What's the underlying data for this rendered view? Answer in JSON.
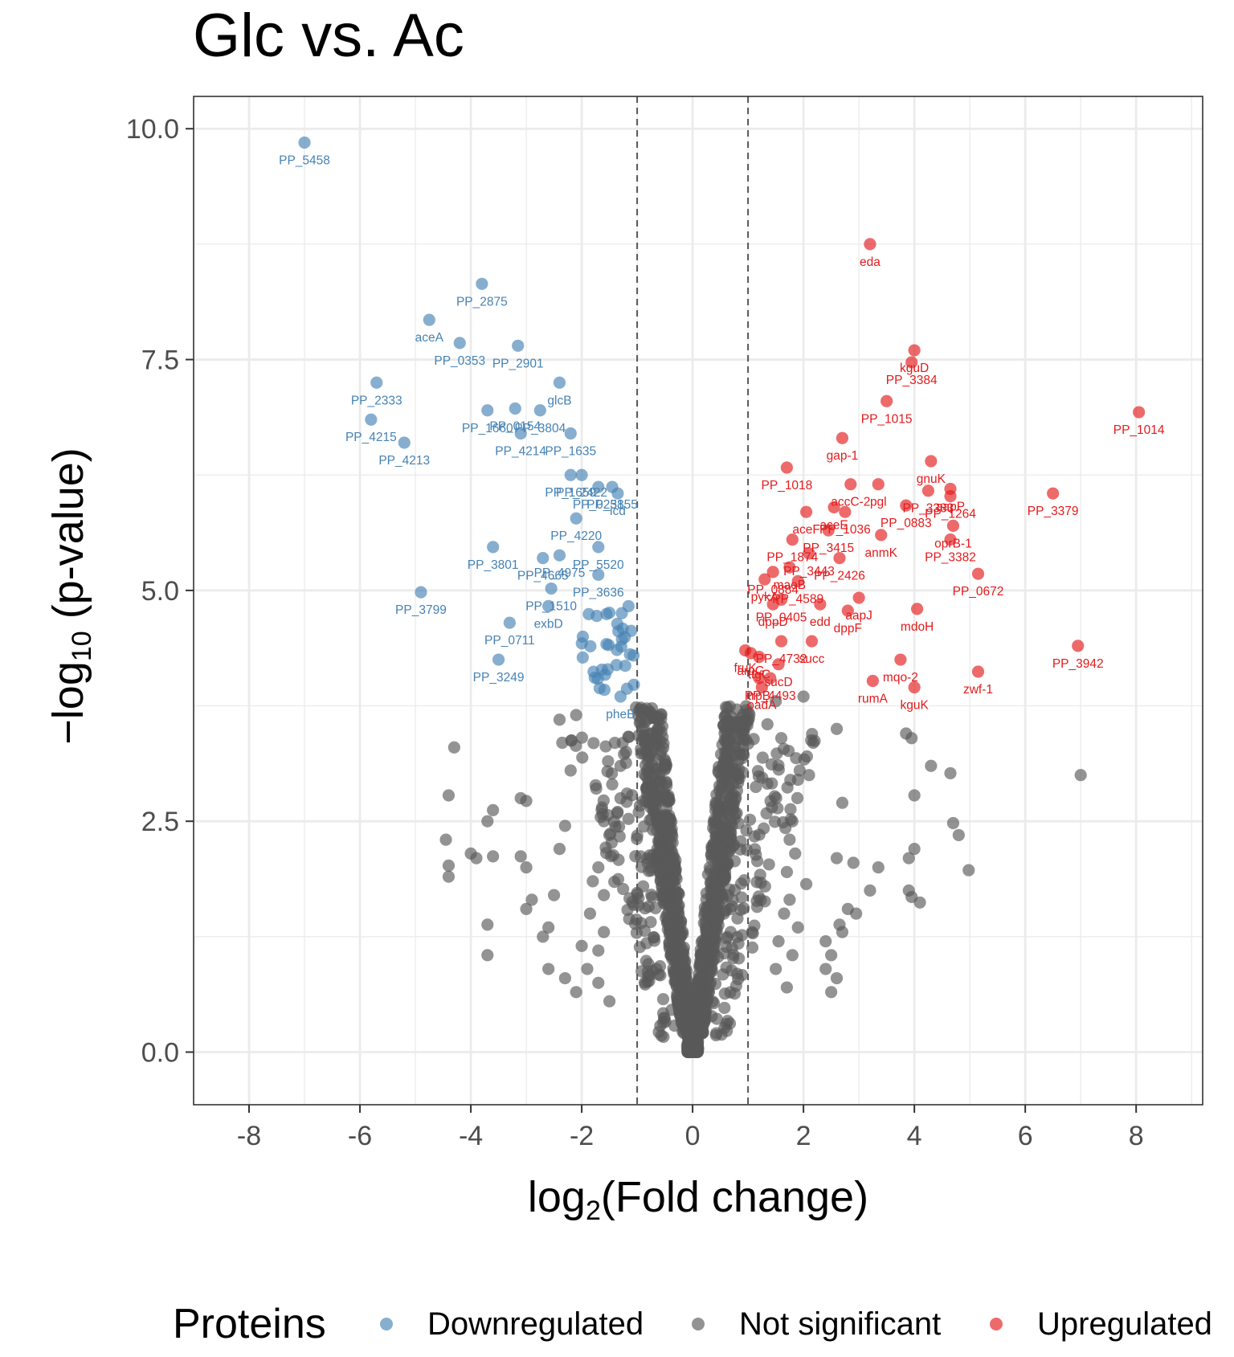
{
  "chart_data": {
    "type": "scatter",
    "title": "Glc vs. Ac",
    "xlabel": "log2(Fold change)",
    "ylabel": "−log10 (p-value)",
    "xlim": [
      -9,
      9.2
    ],
    "ylim": [
      -0.57,
      10.35
    ],
    "x_ticks": [
      -8,
      -6,
      -4,
      -2,
      0,
      2,
      4,
      6,
      8
    ],
    "x_tick_labels": [
      "-8",
      "-6",
      "-4",
      "-2",
      "0",
      "2",
      "4",
      "6",
      "8"
    ],
    "y_ticks": [
      0,
      2.5,
      5,
      7.5,
      10
    ],
    "y_tick_labels": [
      "0.0",
      "2.5",
      "5.0",
      "7.5",
      "10.0"
    ],
    "fc_thresholds": [
      -1,
      1
    ],
    "grid": true,
    "legend": {
      "title": "Proteins",
      "position": "bottom",
      "entries": [
        {
          "name": "Downregulated",
          "color": "#4682B4"
        },
        {
          "name": "Not significant",
          "color": "#595959"
        },
        {
          "name": "Upregulated",
          "color": "#E31A1C"
        }
      ]
    },
    "colors": {
      "down": "#4682B4",
      "ns": "#595959",
      "up": "#E31A1C"
    },
    "down": [
      {
        "label": "PP_5458",
        "x": -7.0,
        "y": 9.85
      },
      {
        "label": "PP_2875",
        "x": -3.8,
        "y": 8.32
      },
      {
        "label": "aceA",
        "x": -4.75,
        "y": 7.93
      },
      {
        "label": "PP_2901",
        "x": -3.15,
        "y": 7.65
      },
      {
        "label": "PP_0353",
        "x": -4.2,
        "y": 7.68
      },
      {
        "label": "PP_2333",
        "x": -5.7,
        "y": 7.25
      },
      {
        "label": "glcB",
        "x": -2.4,
        "y": 7.25
      },
      {
        "label": "PP_0154",
        "x": -3.2,
        "y": 6.97
      },
      {
        "label": "PP_4215",
        "x": -5.8,
        "y": 6.85
      },
      {
        "label": "PP_3804",
        "x": -2.75,
        "y": 6.95
      },
      {
        "label": "PP_1660",
        "x": -3.7,
        "y": 6.95
      },
      {
        "label": "PP_1635",
        "x": -2.2,
        "y": 6.7
      },
      {
        "label": "PP_4214",
        "x": -3.1,
        "y": 6.7
      },
      {
        "label": "PP_4213",
        "x": -5.2,
        "y": 6.6
      },
      {
        "label": "PP_2422",
        "x": -2.0,
        "y": 6.25
      },
      {
        "label": "PP_1659",
        "x": -2.2,
        "y": 6.25
      },
      {
        "label": "PP_3155",
        "x": -1.45,
        "y": 6.12
      },
      {
        "label": "PP_0258",
        "x": -1.7,
        "y": 6.12
      },
      {
        "label": "icd",
        "x": -1.35,
        "y": 6.05
      },
      {
        "label": "PP_4220",
        "x": -2.1,
        "y": 5.78
      },
      {
        "label": "PP_5520",
        "x": -1.7,
        "y": 5.47
      },
      {
        "label": "PP_3801",
        "x": -3.6,
        "y": 5.47
      },
      {
        "label": "PP_4975",
        "x": -2.4,
        "y": 5.38
      },
      {
        "label": "PP_4665",
        "x": -2.7,
        "y": 5.35
      },
      {
        "label": "PP_3636",
        "x": -1.7,
        "y": 5.17
      },
      {
        "label": "PP_1510",
        "x": -2.55,
        "y": 5.02
      },
      {
        "label": "PP_3799",
        "x": -4.9,
        "y": 4.98
      },
      {
        "label": "exbD",
        "x": -2.6,
        "y": 4.83
      },
      {
        "label": "PP_0711",
        "x": -3.3,
        "y": 4.65
      },
      {
        "label": "PP_3249",
        "x": -3.5,
        "y": 4.25
      },
      {
        "label": "pheB",
        "x": -1.3,
        "y": 3.85
      }
    ],
    "up": [
      {
        "label": "eda",
        "x": 3.2,
        "y": 8.75
      },
      {
        "label": "kguD",
        "x": 4.0,
        "y": 7.6
      },
      {
        "label": "PP_3384",
        "x": 3.95,
        "y": 7.47
      },
      {
        "label": "PP_1015",
        "x": 3.5,
        "y": 7.05
      },
      {
        "label": "PP_1014",
        "x": 8.05,
        "y": 6.93
      },
      {
        "label": "gnuK",
        "x": 4.3,
        "y": 6.4
      },
      {
        "label": "gap-1",
        "x": 2.7,
        "y": 6.65
      },
      {
        "label": "PP_1018",
        "x": 1.7,
        "y": 6.33
      },
      {
        "label": "accC-2",
        "x": 2.85,
        "y": 6.15
      },
      {
        "label": "pgl",
        "x": 3.35,
        "y": 6.15
      },
      {
        "label": "PP_3383",
        "x": 4.25,
        "y": 6.08
      },
      {
        "label": "aapP",
        "x": 4.65,
        "y": 6.1
      },
      {
        "label": "PP_3379",
        "x": 6.5,
        "y": 6.05
      },
      {
        "label": "aceF",
        "x": 2.05,
        "y": 5.85
      },
      {
        "label": "aceE",
        "x": 2.55,
        "y": 5.9
      },
      {
        "label": "PP_1036",
        "x": 2.75,
        "y": 5.85
      },
      {
        "label": "PP_0883",
        "x": 3.85,
        "y": 5.92
      },
      {
        "label": "PP_1264",
        "x": 4.65,
        "y": 6.02
      },
      {
        "label": "PP_1874",
        "x": 1.8,
        "y": 5.55
      },
      {
        "label": "PP_3415",
        "x": 2.45,
        "y": 5.65
      },
      {
        "label": "PP_2426",
        "x": 2.65,
        "y": 5.35
      },
      {
        "label": "anmK",
        "x": 3.4,
        "y": 5.6
      },
      {
        "label": "oprB-1",
        "x": 4.7,
        "y": 5.7
      },
      {
        "label": "PP_0884",
        "x": 1.45,
        "y": 5.2
      },
      {
        "label": "PP_3443",
        "x": 2.1,
        "y": 5.4
      },
      {
        "label": "PP_3382",
        "x": 4.65,
        "y": 5.55
      },
      {
        "label": "maeB",
        "x": 1.75,
        "y": 5.25
      },
      {
        "label": "pykA",
        "x": 1.3,
        "y": 5.12
      },
      {
        "label": "PP_4589",
        "x": 1.9,
        "y": 5.1
      },
      {
        "label": "PP_0672",
        "x": 5.15,
        "y": 5.18
      },
      {
        "label": "edd",
        "x": 2.3,
        "y": 4.85
      },
      {
        "label": "aapJ",
        "x": 3.0,
        "y": 4.92
      },
      {
        "label": "dppD",
        "x": 1.45,
        "y": 4.85
      },
      {
        "label": "dppF",
        "x": 2.8,
        "y": 4.78
      },
      {
        "label": "mdoH",
        "x": 4.05,
        "y": 4.8
      },
      {
        "label": "PP_0405",
        "x": 1.6,
        "y": 4.9
      },
      {
        "label": "fruK",
        "x": 0.95,
        "y": 4.35
      },
      {
        "label": "PP_3942",
        "x": 6.95,
        "y": 4.4
      },
      {
        "label": "succ",
        "x": 2.15,
        "y": 4.45
      },
      {
        "label": "mqo-2",
        "x": 3.75,
        "y": 4.25
      },
      {
        "label": "aruG",
        "x": 1.05,
        "y": 4.32
      },
      {
        "label": "ttgC",
        "x": 1.2,
        "y": 4.28
      },
      {
        "label": "PP_4732",
        "x": 1.6,
        "y": 4.45
      },
      {
        "label": "zwf-1",
        "x": 5.15,
        "y": 4.12
      },
      {
        "label": "sucD",
        "x": 1.55,
        "y": 4.2
      },
      {
        "label": "PP_4493",
        "x": 1.4,
        "y": 4.05
      },
      {
        "label": "rumA",
        "x": 3.25,
        "y": 4.02
      },
      {
        "label": "trpB",
        "x": 1.2,
        "y": 4.05
      },
      {
        "label": "kguK",
        "x": 4.0,
        "y": 3.95
      },
      {
        "label": "oadA",
        "x": 1.25,
        "y": 3.95
      }
    ],
    "ns_outliers": [
      {
        "x": -4.3,
        "y": 3.3
      },
      {
        "x": -4.4,
        "y": 2.78
      },
      {
        "x": -3.7,
        "y": 2.5
      },
      {
        "x": -3.6,
        "y": 2.62
      },
      {
        "x": -4.45,
        "y": 2.3
      },
      {
        "x": -4.0,
        "y": 2.15
      },
      {
        "x": -3.9,
        "y": 2.1
      },
      {
        "x": -4.4,
        "y": 2.02
      },
      {
        "x": -4.4,
        "y": 1.9
      },
      {
        "x": -3.6,
        "y": 2.12
      },
      {
        "x": -3.1,
        "y": 2.75
      },
      {
        "x": -3.0,
        "y": 2.72
      },
      {
        "x": -3.1,
        "y": 2.12
      },
      {
        "x": -3.0,
        "y": 2.0
      },
      {
        "x": -2.9,
        "y": 1.65
      },
      {
        "x": -3.0,
        "y": 1.55
      },
      {
        "x": -3.7,
        "y": 1.38
      },
      {
        "x": -3.7,
        "y": 1.05
      },
      {
        "x": -2.7,
        "y": 1.25
      },
      {
        "x": -2.6,
        "y": 1.35
      },
      {
        "x": -2.6,
        "y": 0.9
      },
      {
        "x": -2.3,
        "y": 0.8
      },
      {
        "x": -2.5,
        "y": 1.7
      },
      {
        "x": -2.4,
        "y": 2.2
      },
      {
        "x": -2.3,
        "y": 2.45
      },
      {
        "x": -2.35,
        "y": 3.35
      },
      {
        "x": -2.4,
        "y": 3.6
      },
      {
        "x": -2.2,
        "y": 3.05
      },
      {
        "x": -2.1,
        "y": 3.65
      },
      {
        "x": 2.7,
        "y": 2.7
      },
      {
        "x": 2.6,
        "y": 2.1
      },
      {
        "x": 2.9,
        "y": 2.05
      },
      {
        "x": 3.35,
        "y": 2.0
      },
      {
        "x": 3.2,
        "y": 1.75
      },
      {
        "x": 3.9,
        "y": 1.75
      },
      {
        "x": 3.95,
        "y": 1.68
      },
      {
        "x": 4.1,
        "y": 1.62
      },
      {
        "x": 2.8,
        "y": 1.55
      },
      {
        "x": 2.95,
        "y": 1.5
      },
      {
        "x": 3.9,
        "y": 2.1
      },
      {
        "x": 4.0,
        "y": 2.2
      },
      {
        "x": 4.0,
        "y": 2.78
      },
      {
        "x": 4.3,
        "y": 3.1
      },
      {
        "x": 4.65,
        "y": 3.02
      },
      {
        "x": 3.95,
        "y": 3.4
      },
      {
        "x": 3.85,
        "y": 3.45
      },
      {
        "x": 2.6,
        "y": 3.5
      },
      {
        "x": 4.7,
        "y": 2.48
      },
      {
        "x": 4.8,
        "y": 2.35
      },
      {
        "x": 4.98,
        "y": 1.97
      },
      {
        "x": 7.0,
        "y": 3.0
      },
      {
        "x": 2.65,
        "y": 1.38
      },
      {
        "x": 2.7,
        "y": 1.3
      },
      {
        "x": 2.4,
        "y": 1.2
      },
      {
        "x": 2.5,
        "y": 1.05
      },
      {
        "x": 2.6,
        "y": 0.8
      },
      {
        "x": 2.4,
        "y": 0.9
      },
      {
        "x": 2.5,
        "y": 0.65
      },
      {
        "x": 2.1,
        "y": 3.0
      },
      {
        "x": 1.9,
        "y": 2.95
      },
      {
        "x": 1.5,
        "y": 3.8
      },
      {
        "x": 1.6,
        "y": 3.4
      },
      {
        "x": 1.35,
        "y": 3.55
      },
      {
        "x": 2.0,
        "y": 3.85
      },
      {
        "x": 1.8,
        "y": 2.5
      },
      {
        "x": 1.75,
        "y": 2.3
      },
      {
        "x": 1.85,
        "y": 2.15
      },
      {
        "x": 1.7,
        "y": 1.95
      },
      {
        "x": 2.05,
        "y": 1.82
      },
      {
        "x": 1.75,
        "y": 1.65
      },
      {
        "x": 1.65,
        "y": 1.5
      },
      {
        "x": 1.9,
        "y": 1.35
      },
      {
        "x": 1.55,
        "y": 1.2
      },
      {
        "x": 1.8,
        "y": 1.05
      },
      {
        "x": 1.5,
        "y": 0.9
      },
      {
        "x": 1.7,
        "y": 0.7
      },
      {
        "x": -1.3,
        "y": 3.1
      },
      {
        "x": -1.2,
        "y": 3.25
      },
      {
        "x": -1.45,
        "y": 2.9
      },
      {
        "x": -1.6,
        "y": 2.5
      },
      {
        "x": -1.5,
        "y": 2.35
      },
      {
        "x": -1.7,
        "y": 2.0
      },
      {
        "x": -1.8,
        "y": 1.85
      },
      {
        "x": -1.6,
        "y": 1.7
      },
      {
        "x": -1.85,
        "y": 1.5
      },
      {
        "x": -1.6,
        "y": 1.3
      },
      {
        "x": -1.7,
        "y": 1.1
      },
      {
        "x": -2.0,
        "y": 1.15
      },
      {
        "x": -1.9,
        "y": 0.9
      },
      {
        "x": -1.7,
        "y": 0.75
      },
      {
        "x": -1.5,
        "y": 0.55
      },
      {
        "x": -2.1,
        "y": 0.65
      }
    ]
  }
}
